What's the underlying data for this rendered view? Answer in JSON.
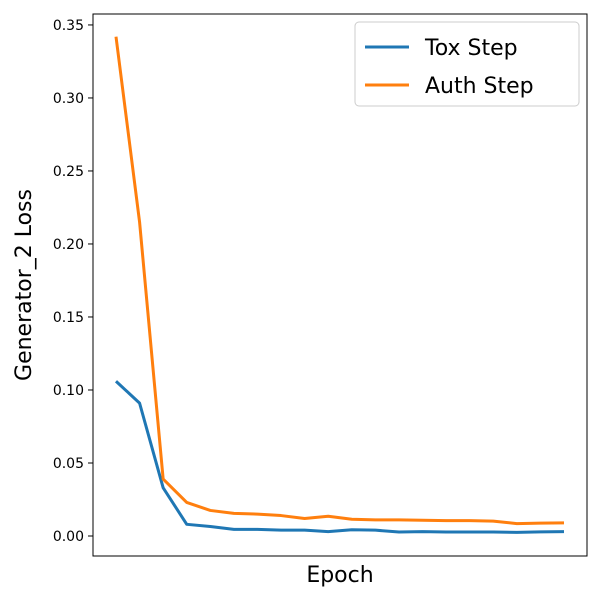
{
  "chart_data": {
    "type": "line",
    "xlabel": "Epoch",
    "ylabel": "Generator_2 Loss",
    "categories": [
      null,
      null,
      null,
      null,
      null,
      null,
      null,
      null,
      null,
      null,
      null,
      null,
      null,
      null,
      null,
      null,
      null,
      null,
      null,
      null
    ],
    "series": [
      {
        "name": "Tox Step",
        "color": "#1f77b4",
        "values": [
          0.106,
          0.091,
          0.033,
          0.008,
          0.0065,
          0.0045,
          0.0045,
          0.004,
          0.004,
          0.003,
          0.0043,
          0.004,
          0.0027,
          0.003,
          0.0027,
          0.0027,
          0.0027,
          0.0025,
          0.0028,
          0.003
        ]
      },
      {
        "name": "Auth Step",
        "color": "#ff7f0e",
        "values": [
          0.342,
          0.215,
          0.039,
          0.023,
          0.0175,
          0.0155,
          0.015,
          0.014,
          0.012,
          0.0135,
          0.0115,
          0.011,
          0.011,
          0.0108,
          0.0105,
          0.0105,
          0.0102,
          0.0085,
          0.0088,
          0.009
        ]
      }
    ],
    "ylim": [
      -0.0137,
      0.3575
    ],
    "yticks": [
      {
        "value": 0,
        "label": "0.00"
      },
      0.05,
      {
        "value": 0.1,
        "label": "0.10"
      },
      0.15,
      {
        "value": 0.2,
        "label": "0.20"
      },
      0.25,
      {
        "value": 0.3,
        "label": "0.30"
      },
      0.35
    ],
    "legend": "upper right"
  }
}
